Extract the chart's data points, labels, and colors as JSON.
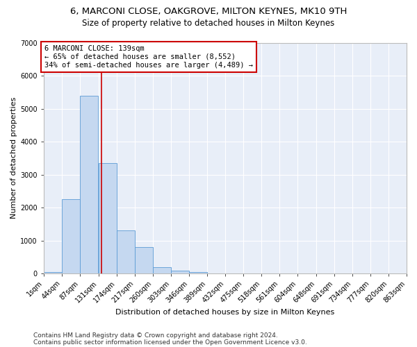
{
  "title1": "6, MARCONI CLOSE, OAKGROVE, MILTON KEYNES, MK10 9TH",
  "title2": "Size of property relative to detached houses in Milton Keynes",
  "xlabel": "Distribution of detached houses by size in Milton Keynes",
  "ylabel": "Number of detached properties",
  "bar_color": "#c5d8f0",
  "bar_edge_color": "#5b9bd5",
  "background_color": "#e8eef8",
  "grid_color": "#ffffff",
  "bin_edges": [
    1,
    44,
    87,
    131,
    174,
    217,
    260,
    303,
    346,
    389,
    432,
    475,
    518,
    561,
    604,
    648,
    691,
    734,
    777,
    820,
    863
  ],
  "bar_heights": [
    50,
    2250,
    5400,
    3350,
    1300,
    800,
    190,
    95,
    45,
    0,
    0,
    0,
    0,
    0,
    0,
    0,
    0,
    0,
    0,
    0
  ],
  "property_size": 139,
  "vline_color": "#cc0000",
  "annotation_text": "6 MARCONI CLOSE: 139sqm\n← 65% of detached houses are smaller (8,552)\n34% of semi-detached houses are larger (4,489) →",
  "annotation_box_color": "#ffffff",
  "annotation_box_edge": "#cc0000",
  "ylim": [
    0,
    7000
  ],
  "yticks": [
    0,
    1000,
    2000,
    3000,
    4000,
    5000,
    6000,
    7000
  ],
  "footnote1": "Contains HM Land Registry data © Crown copyright and database right 2024.",
  "footnote2": "Contains public sector information licensed under the Open Government Licence v3.0.",
  "title1_fontsize": 9.5,
  "title2_fontsize": 8.5,
  "xlabel_fontsize": 8,
  "ylabel_fontsize": 8,
  "tick_fontsize": 7,
  "annot_fontsize": 7.5,
  "footnote_fontsize": 6.5
}
